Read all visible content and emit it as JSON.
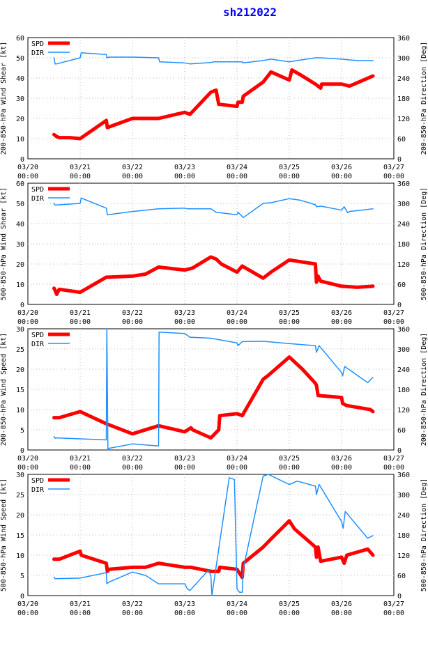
{
  "title": "sh212022",
  "colors": {
    "spd": "#ff0000",
    "dir": "#1e90ff",
    "grid": "#bbbbbb",
    "title": "#0000ff"
  },
  "chart_data": [
    {
      "type": "line",
      "xlabel": "",
      "ylabel": "200-850-hPa Wind Shear [kt]",
      "y2label": "200-850-hPa Direction [Deg]",
      "ylim": [
        0,
        60
      ],
      "y2lim": [
        0,
        360
      ],
      "yticks": [
        0,
        10,
        20,
        30,
        40,
        50,
        60
      ],
      "y2ticks": [
        0,
        60,
        120,
        180,
        240,
        300,
        360
      ],
      "xlim": [
        0,
        7
      ],
      "xticks": [
        {
          "d": "03/20",
          "t": "00:00"
        },
        {
          "d": "03/21",
          "t": "00:00"
        },
        {
          "d": "03/22",
          "t": "00:00"
        },
        {
          "d": "03/23",
          "t": "00:00"
        },
        {
          "d": "03/24",
          "t": "00:00"
        },
        {
          "d": "03/25",
          "t": "00:00"
        },
        {
          "d": "03/26",
          "t": "00:00"
        },
        {
          "d": "03/27",
          "t": "00:00"
        }
      ],
      "legend": [
        "SPD",
        "DIR"
      ],
      "series": [
        {
          "name": "SPD",
          "axis": "left",
          "x": [
            0.5,
            0.55,
            0.6,
            0.8,
            1.0,
            1.5,
            1.52,
            2.0,
            2.25,
            2.5,
            3.0,
            3.1,
            3.5,
            3.6,
            3.65,
            4.0,
            4.02,
            4.1,
            4.12,
            4.5,
            4.65,
            5.0,
            5.05,
            5.25,
            5.5,
            5.6,
            5.62,
            6.0,
            6.15,
            6.6
          ],
          "values": [
            12,
            11,
            10.5,
            10.5,
            10,
            19,
            15.5,
            20,
            20,
            20,
            23,
            22,
            33,
            34,
            27,
            26,
            28,
            28,
            31,
            38,
            43,
            39,
            44,
            41,
            37,
            35,
            37,
            37,
            36,
            41
          ]
        },
        {
          "name": "DIR",
          "axis": "right",
          "x": [
            0.5,
            0.52,
            0.55,
            1.0,
            1.02,
            1.5,
            1.51,
            1.55,
            2.0,
            2.5,
            2.52,
            3.0,
            3.1,
            3.5,
            3.55,
            4.0,
            4.1,
            4.12,
            4.5,
            4.65,
            5.0,
            5.15,
            5.5,
            5.6,
            6.0,
            6.3,
            6.6
          ],
          "values": [
            300,
            282,
            282,
            300,
            315,
            310,
            300,
            302,
            302,
            300,
            288,
            285,
            282,
            286,
            288,
            288,
            288,
            285,
            292,
            296,
            288,
            292,
            300,
            300,
            296,
            292,
            292
          ]
        }
      ]
    },
    {
      "type": "line",
      "xlabel": "",
      "ylabel": "500-850-hPa Wind Shear [kt]",
      "y2label": "500-850-hPa Direction [Deg]",
      "ylim": [
        0,
        60
      ],
      "y2lim": [
        0,
        360
      ],
      "yticks": [
        0,
        10,
        20,
        30,
        40,
        50,
        60
      ],
      "y2ticks": [
        0,
        60,
        120,
        180,
        240,
        300,
        360
      ],
      "xlim": [
        0,
        7
      ],
      "xticks": [
        {
          "d": "03/20",
          "t": "00:00"
        },
        {
          "d": "03/21",
          "t": "00:00"
        },
        {
          "d": "03/22",
          "t": "00:00"
        },
        {
          "d": "03/23",
          "t": "00:00"
        },
        {
          "d": "03/24",
          "t": "00:00"
        },
        {
          "d": "03/25",
          "t": "00:00"
        },
        {
          "d": "03/26",
          "t": "00:00"
        },
        {
          "d": "03/27",
          "t": "00:00"
        }
      ],
      "legend": [
        "SPD",
        "DIR"
      ],
      "series": [
        {
          "name": "SPD",
          "axis": "left",
          "x": [
            0.5,
            0.52,
            0.55,
            0.6,
            1.0,
            1.5,
            1.55,
            2.0,
            2.25,
            2.5,
            3.0,
            3.15,
            3.5,
            3.6,
            3.7,
            4.0,
            4.1,
            4.5,
            4.65,
            5.0,
            5.5,
            5.52,
            5.55,
            5.6,
            6.0,
            6.3,
            6.6
          ],
          "values": [
            8,
            7,
            5,
            7.5,
            6,
            13.5,
            13.5,
            14,
            15,
            18.5,
            17,
            18,
            23.5,
            22.5,
            20,
            16,
            19,
            13,
            16,
            22,
            20,
            11,
            14,
            11.5,
            9,
            8.5,
            9
          ]
        },
        {
          "name": "DIR",
          "axis": "right",
          "x": [
            0.5,
            0.52,
            1.0,
            1.02,
            1.5,
            1.52,
            2.0,
            2.5,
            3.0,
            3.05,
            3.5,
            3.6,
            4.0,
            4.02,
            4.12,
            4.5,
            4.65,
            5.0,
            5.2,
            5.5,
            5.52,
            5.6,
            6.0,
            6.05,
            6.12,
            6.15,
            6.6
          ],
          "values": [
            300,
            295,
            300,
            316,
            286,
            266,
            276,
            284,
            286,
            284,
            284,
            274,
            266,
            274,
            258,
            300,
            302,
            314,
            310,
            296,
            290,
            292,
            280,
            290,
            272,
            276,
            284
          ]
        }
      ]
    },
    {
      "type": "line",
      "xlabel": "",
      "ylabel": "200-850-hPa Wind Speed [kt]",
      "y2label": "200-850-hPa Direction [Deg]",
      "ylim": [
        0,
        30
      ],
      "y2lim": [
        0,
        360
      ],
      "yticks": [
        0,
        5,
        10,
        15,
        20,
        25,
        30
      ],
      "y2ticks": [
        0,
        60,
        120,
        180,
        240,
        300,
        360
      ],
      "xlim": [
        0,
        7
      ],
      "xticks": [
        {
          "d": "03/20",
          "t": "00:00"
        },
        {
          "d": "03/21",
          "t": "00:00"
        },
        {
          "d": "03/22",
          "t": "00:00"
        },
        {
          "d": "03/23",
          "t": "00:00"
        },
        {
          "d": "03/24",
          "t": "00:00"
        },
        {
          "d": "03/25",
          "t": "00:00"
        },
        {
          "d": "03/26",
          "t": "00:00"
        },
        {
          "d": "03/27",
          "t": "00:00"
        }
      ],
      "legend": [
        "SPD",
        "DIR"
      ],
      "series": [
        {
          "name": "SPD",
          "axis": "left",
          "x": [
            0.5,
            0.6,
            1.0,
            1.5,
            2.0,
            2.5,
            3.0,
            3.12,
            3.15,
            3.5,
            3.65,
            3.67,
            4.0,
            4.1,
            4.5,
            4.6,
            5.0,
            5.25,
            5.5,
            5.52,
            5.55,
            6.0,
            6.02,
            6.1,
            6.55,
            6.6
          ],
          "values": [
            8,
            8,
            9.5,
            6.5,
            4,
            6,
            4.5,
            5.5,
            5,
            3,
            5,
            8.5,
            9,
            8.5,
            17.5,
            18.5,
            23,
            20,
            16.5,
            16,
            13.5,
            13,
            11.5,
            11,
            10,
            9.5
          ]
        },
        {
          "name": "DIR",
          "axis": "right",
          "x": [
            0.5,
            0.52,
            0.55,
            1.0,
            1.5,
            1.51,
            1.52,
            1.53,
            1.55,
            2.0,
            2.5,
            2.51,
            3.0,
            3.1,
            3.5,
            4.0,
            4.02,
            4.1,
            4.5,
            5.0,
            5.5,
            5.52,
            5.57,
            6.0,
            6.02,
            6.06,
            6.5,
            6.6
          ],
          "values": [
            40,
            35,
            36,
            33,
            30,
            360,
            200,
            0,
            5,
            18,
            12,
            350,
            346,
            335,
            332,
            318,
            310,
            322,
            323,
            316,
            310,
            290,
            310,
            230,
            220,
            248,
            200,
            216
          ]
        }
      ]
    },
    {
      "type": "line",
      "xlabel": "",
      "ylabel": "500-850-hPa Wind Speed [kt]",
      "y2label": "500-850-hPa Direction [Deg]",
      "ylim": [
        0,
        30
      ],
      "y2lim": [
        0,
        360
      ],
      "yticks": [
        0,
        5,
        10,
        15,
        20,
        25,
        30
      ],
      "y2ticks": [
        0,
        60,
        120,
        180,
        240,
        300,
        360
      ],
      "xlim": [
        0,
        7
      ],
      "xticks": [
        {
          "d": "03/20",
          "t": "00:00"
        },
        {
          "d": "03/21",
          "t": "00:00"
        },
        {
          "d": "03/22",
          "t": "00:00"
        },
        {
          "d": "03/23",
          "t": "00:00"
        },
        {
          "d": "03/24",
          "t": "00:00"
        },
        {
          "d": "03/25",
          "t": "00:00"
        },
        {
          "d": "03/26",
          "t": "00:00"
        },
        {
          "d": "03/27",
          "t": "00:00"
        }
      ],
      "legend": [
        "SPD",
        "DIR"
      ],
      "series": [
        {
          "name": "SPD",
          "axis": "left",
          "x": [
            0.5,
            0.6,
            1.0,
            1.02,
            1.5,
            1.52,
            1.55,
            2.0,
            2.25,
            2.5,
            3.0,
            3.12,
            3.5,
            3.65,
            3.67,
            4.0,
            4.1,
            4.12,
            4.5,
            4.65,
            5.0,
            5.1,
            5.5,
            5.52,
            5.55,
            5.6,
            6.0,
            6.05,
            6.1,
            6.5,
            6.6
          ],
          "values": [
            9,
            9,
            11,
            10,
            8,
            6,
            6.5,
            7,
            7,
            8,
            7,
            7,
            6,
            6,
            7,
            6.5,
            4.5,
            8,
            12,
            14,
            18.5,
            16.5,
            12,
            9.5,
            12,
            8.5,
            9.5,
            8,
            10,
            11.5,
            10
          ]
        },
        {
          "name": "DIR",
          "axis": "right",
          "x": [
            0.5,
            0.52,
            1.0,
            1.5,
            1.51,
            1.55,
            2.0,
            2.25,
            2.5,
            3.0,
            3.05,
            3.1,
            3.45,
            3.5,
            3.52,
            3.85,
            3.95,
            4.0,
            4.05,
            4.1,
            4.12,
            4.5,
            4.6,
            4.8,
            5.0,
            5.15,
            5.5,
            5.52,
            5.57,
            6.0,
            6.03,
            6.07,
            6.5,
            6.6
          ],
          "values": [
            55,
            50,
            52,
            68,
            35,
            40,
            70,
            60,
            35,
            35,
            20,
            15,
            75,
            60,
            0,
            350,
            345,
            20,
            10,
            10,
            80,
            355,
            360,
            345,
            330,
            340,
            325,
            300,
            330,
            220,
            200,
            250,
            170,
            178
          ]
        }
      ]
    }
  ]
}
